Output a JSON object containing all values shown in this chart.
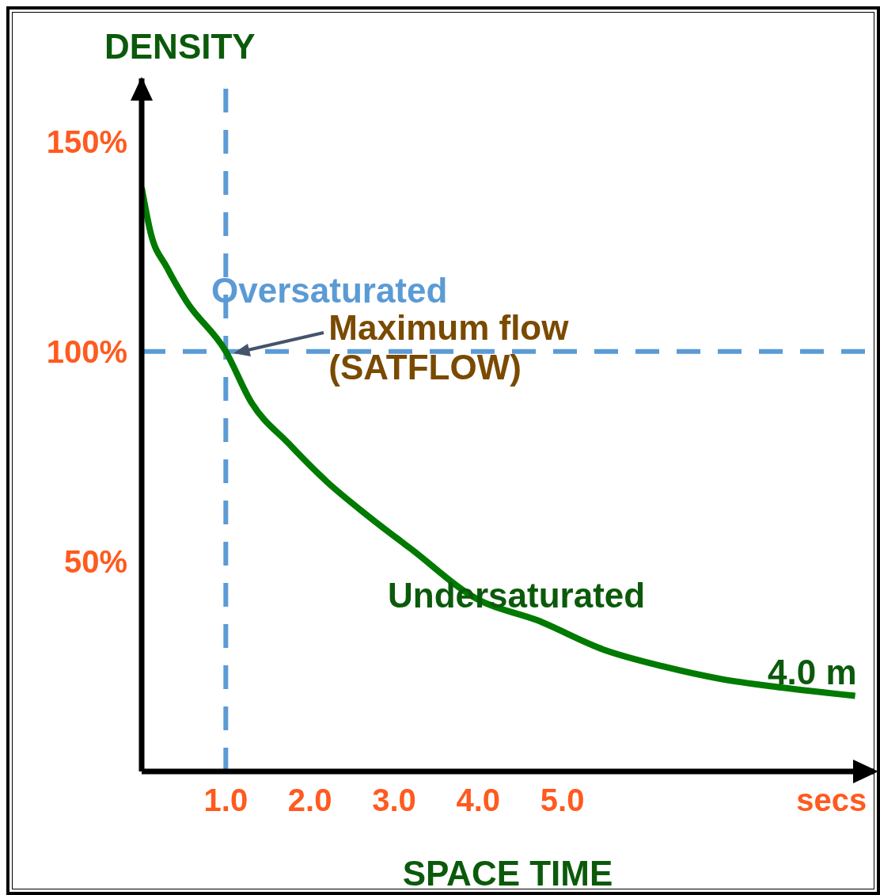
{
  "chart_data": {
    "type": "line",
    "xlabel": "SPACE TIME",
    "ylabel": "DENSITY",
    "x": [
      0,
      0.11,
      0.3,
      0.53,
      1.0,
      1.3,
      1.75,
      2.2,
      2.68,
      3.2,
      3.99,
      4.7,
      5.49,
      6.2,
      6.89,
      7.6,
      8.48
    ],
    "series": [
      {
        "color": "#007a00",
        "values": [
          139,
          128,
          120,
          112,
          100,
          88,
          78,
          69,
          61,
          53,
          41,
          36,
          29,
          25,
          22,
          20,
          18
        ]
      }
    ],
    "xlim": [
      0,
      8.7
    ],
    "xticks": [
      {
        "value": 1,
        "label": "1.0"
      },
      {
        "value": 2,
        "label": "2.0"
      },
      {
        "value": 3,
        "label": "3.0"
      },
      {
        "value": 4,
        "label": "4.0"
      },
      {
        "value": 5,
        "label": "5.0"
      },
      {
        "value": 8.2,
        "label": "secs"
      }
    ],
    "ylim": [
      0,
      165
    ],
    "yticks": [
      {
        "value": 50,
        "label": "50%"
      },
      {
        "value": 100,
        "label": "100%"
      },
      {
        "value": 150,
        "label": "150%"
      }
    ],
    "ref_lines": [
      {
        "axis": "x",
        "value": 1.0,
        "color": "#5b9bd5",
        "line_style": "dashed"
      },
      {
        "axis": "y",
        "value": 100,
        "color": "#5b9bd5",
        "line_style": "dashed"
      }
    ],
    "annotations": [
      "Oversaturated",
      {
        "text": "Maximum flow (SATFLOW)",
        "x": 1.0,
        "y": 100
      },
      "Undersaturated",
      "4.0 m"
    ],
    "grid": false,
    "legend": false,
    "marker": "none",
    "line_style": "solid"
  }
}
